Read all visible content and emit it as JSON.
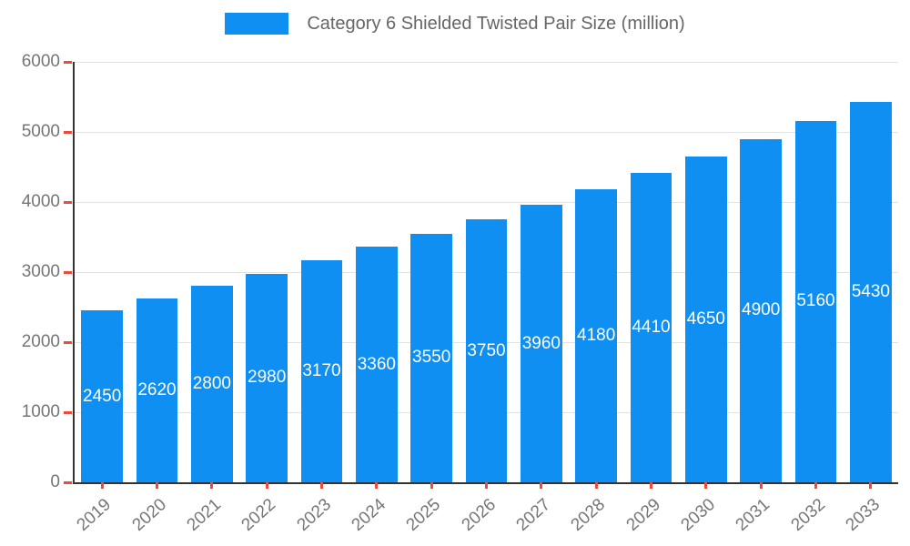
{
  "chart_data": {
    "type": "bar",
    "title": "Category 6 Shielded Twisted Pair Size (million)",
    "categories": [
      "2019",
      "2020",
      "2021",
      "2022",
      "2023",
      "2024",
      "2025",
      "2026",
      "2027",
      "2028",
      "2029",
      "2030",
      "2031",
      "2032",
      "2033"
    ],
    "values": [
      2450,
      2620,
      2800,
      2980,
      3170,
      3360,
      3550,
      3750,
      3960,
      4180,
      4410,
      4650,
      4900,
      5160,
      5430
    ],
    "xlabel": "",
    "ylabel": "",
    "ylim": [
      0,
      6000
    ],
    "yticks": [
      0,
      1000,
      2000,
      3000,
      4000,
      5000,
      6000
    ],
    "grid": true,
    "legend_position": "top",
    "bar_labels_visible": true,
    "colors": {
      "bar": "#0f8ff2",
      "bar_label": "#ffffff",
      "axis_text": "#757575",
      "title_text": "#666666",
      "grid_line": "#e2e2e2",
      "axis_line": "#333333",
      "tick": "#e74c3c",
      "background": "#ffffff"
    }
  }
}
